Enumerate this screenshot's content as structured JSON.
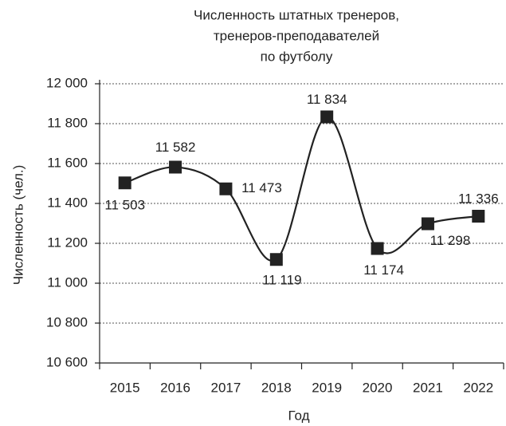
{
  "chart_data": {
    "type": "line",
    "title": [
      "Численность штатных тренеров,",
      "тренеров-преподавателей",
      "по футболу"
    ],
    "x_label": "Год",
    "y_label": "Численность (чел.)",
    "categories": [
      "2015",
      "2016",
      "2017",
      "2018",
      "2019",
      "2020",
      "2021",
      "2022"
    ],
    "values": [
      11503,
      11582,
      11473,
      11119,
      11834,
      11174,
      11298,
      11336
    ],
    "value_labels": [
      "11 503",
      "11 582",
      "11 473",
      "11 119",
      "11 834",
      "11 174",
      "11 298",
      "11 336"
    ],
    "color": "#222222",
    "ylim": [
      10600,
      12000
    ],
    "yticks": [
      {
        "value": 10600,
        "label": "10 600"
      },
      {
        "value": 10800,
        "label": "10 800"
      },
      {
        "value": 11000,
        "label": "11 000"
      },
      {
        "value": 11200,
        "label": "11 200"
      },
      {
        "value": 11400,
        "label": "11 400"
      },
      {
        "value": 11600,
        "label": "11 600"
      },
      {
        "value": 11800,
        "label": "11 800"
      },
      {
        "value": 12000,
        "label": "12 000"
      }
    ],
    "grid": true
  }
}
